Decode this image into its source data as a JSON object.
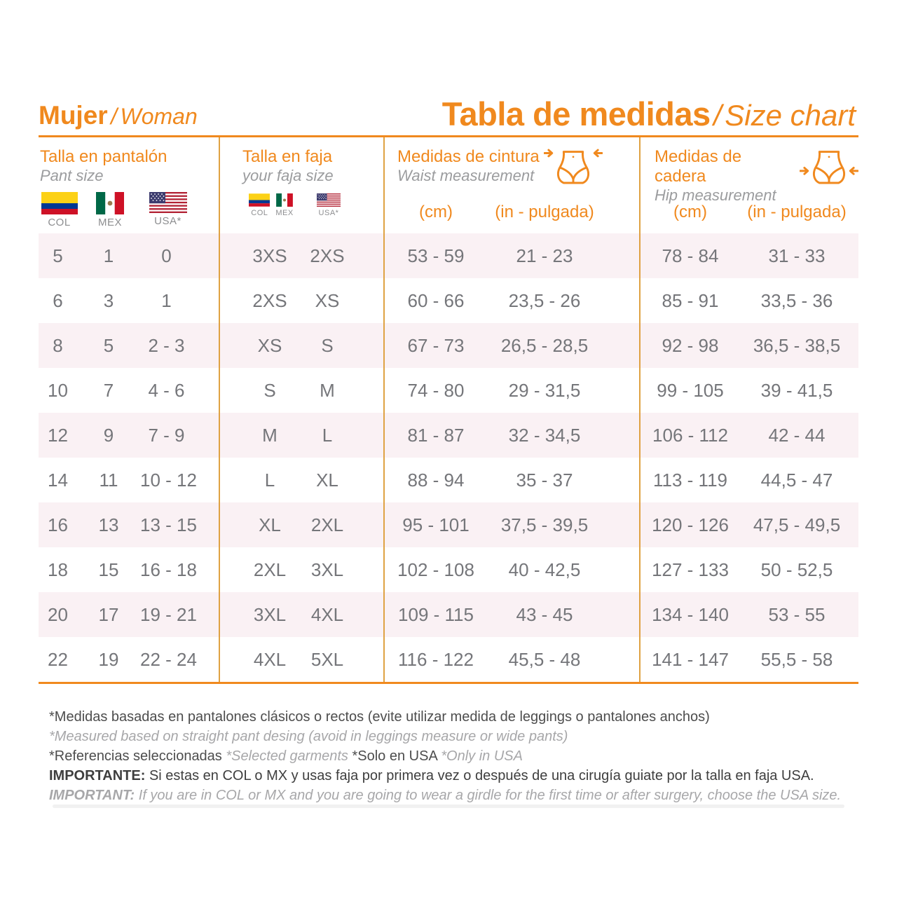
{
  "colors": {
    "accent": "#F0891E",
    "divider": "#DFA243",
    "stripe": "#FAF1F4",
    "data_gray": "#75767A",
    "sub_gray": "#9B9C9E",
    "note_dark": "#4D4D4D",
    "note_light": "#A7A7A9"
  },
  "masthead": {
    "left_es": "Mujer",
    "left_sep": "/",
    "left_en": "Woman",
    "title_es": "Tabla de medidas",
    "title_sep": "/",
    "title_en": "Size chart"
  },
  "groups": {
    "pant": {
      "title_es": "Talla en pantalón",
      "title_en": "Pant size",
      "flags": [
        {
          "code": "COL"
        },
        {
          "code": "MEX"
        },
        {
          "code": "USA*"
        }
      ]
    },
    "faja": {
      "title_es": "Talla en faja",
      "title_en": "your faja size",
      "flags": [
        {
          "code": "COL"
        },
        {
          "code": "MEX"
        },
        {
          "code": "USA*"
        }
      ]
    },
    "waist": {
      "title_es": "Medidas de cintura",
      "title_en": "Waist  measurement",
      "unit_cm": "(cm)",
      "unit_in": "(in - pulgada)"
    },
    "hip": {
      "title_es": "Medidas de cadera",
      "title_en": "Hip measurement",
      "unit_cm": "(cm)",
      "unit_in": "(in - pulgada)"
    }
  },
  "rows": [
    {
      "pant_col": "5",
      "pant_mex": "1",
      "pant_usa": "0",
      "faja_colmex": "3XS",
      "faja_usa": "2XS",
      "waist_cm": "53 - 59",
      "waist_in": "21 - 23",
      "hip_cm": "78 - 84",
      "hip_in": "31 - 33"
    },
    {
      "pant_col": "6",
      "pant_mex": "3",
      "pant_usa": "1",
      "faja_colmex": "2XS",
      "faja_usa": "XS",
      "waist_cm": "60 - 66",
      "waist_in": "23,5 - 26",
      "hip_cm": "85 - 91",
      "hip_in": "33,5 - 36"
    },
    {
      "pant_col": "8",
      "pant_mex": "5",
      "pant_usa": "2 - 3",
      "faja_colmex": "XS",
      "faja_usa": "S",
      "waist_cm": "67 - 73",
      "waist_in": "26,5 - 28,5",
      "hip_cm": "92 - 98",
      "hip_in": "36,5 - 38,5"
    },
    {
      "pant_col": "10",
      "pant_mex": "7",
      "pant_usa": "4 - 6",
      "faja_colmex": "S",
      "faja_usa": "M",
      "waist_cm": "74 - 80",
      "waist_in": "29 - 31,5",
      "hip_cm": "99 - 105",
      "hip_in": "39 - 41,5"
    },
    {
      "pant_col": "12",
      "pant_mex": "9",
      "pant_usa": "7 - 9",
      "faja_colmex": "M",
      "faja_usa": "L",
      "waist_cm": "81 - 87",
      "waist_in": "32 - 34,5",
      "hip_cm": "106 - 112",
      "hip_in": "42 - 44"
    },
    {
      "pant_col": "14",
      "pant_mex": "11",
      "pant_usa": "10 - 12",
      "faja_colmex": "L",
      "faja_usa": "XL",
      "waist_cm": "88 - 94",
      "waist_in": "35 - 37",
      "hip_cm": "113 - 119",
      "hip_in": "44,5 - 47"
    },
    {
      "pant_col": "16",
      "pant_mex": "13",
      "pant_usa": "13 - 15",
      "faja_colmex": "XL",
      "faja_usa": "2XL",
      "waist_cm": "95 - 101",
      "waist_in": "37,5 - 39,5",
      "hip_cm": "120 - 126",
      "hip_in": "47,5 - 49,5"
    },
    {
      "pant_col": "18",
      "pant_mex": "15",
      "pant_usa": "16 - 18",
      "faja_colmex": "2XL",
      "faja_usa": "3XL",
      "waist_cm": "102 - 108",
      "waist_in": "40 - 42,5",
      "hip_cm": "127 - 133",
      "hip_in": "50 - 52,5"
    },
    {
      "pant_col": "20",
      "pant_mex": "17",
      "pant_usa": "19 - 21",
      "faja_colmex": "3XL",
      "faja_usa": "4XL",
      "waist_cm": "109 - 115",
      "waist_in": "43 - 45",
      "hip_cm": "134 - 140",
      "hip_in": "53 - 55"
    },
    {
      "pant_col": "22",
      "pant_mex": "19",
      "pant_usa": "22 - 24",
      "faja_colmex": "4XL",
      "faja_usa": "5XL",
      "waist_cm": "116 - 122",
      "waist_in": "45,5 - 48",
      "hip_cm": "141 - 147",
      "hip_in": "55,5 - 58"
    }
  ],
  "notes": {
    "line1_es": "*Medidas basadas en pantalones clásicos o rectos (evite utilizar medida de leggings o pantalones anchos)",
    "line2_en": "*Measured based on straight pant desing (avoid in leggings measure or wide pants)",
    "line3_es1": "*Referencias seleccionadas",
    "line3_en1": "*Selected garments",
    "line3_es2": "*Solo en USA",
    "line3_en2": "*Only in USA",
    "line4_label": "IMPORTANTE:",
    "line4_text": "Si estas en COL o MX y usas faja por primera vez o después de una cirugía guiate por la talla en faja USA.",
    "line5_label": "IMPORTANT:",
    "line5_text": "If you are in COL or MX and you are going to wear a girdle for the first time or after surgery, choose the USA size."
  }
}
